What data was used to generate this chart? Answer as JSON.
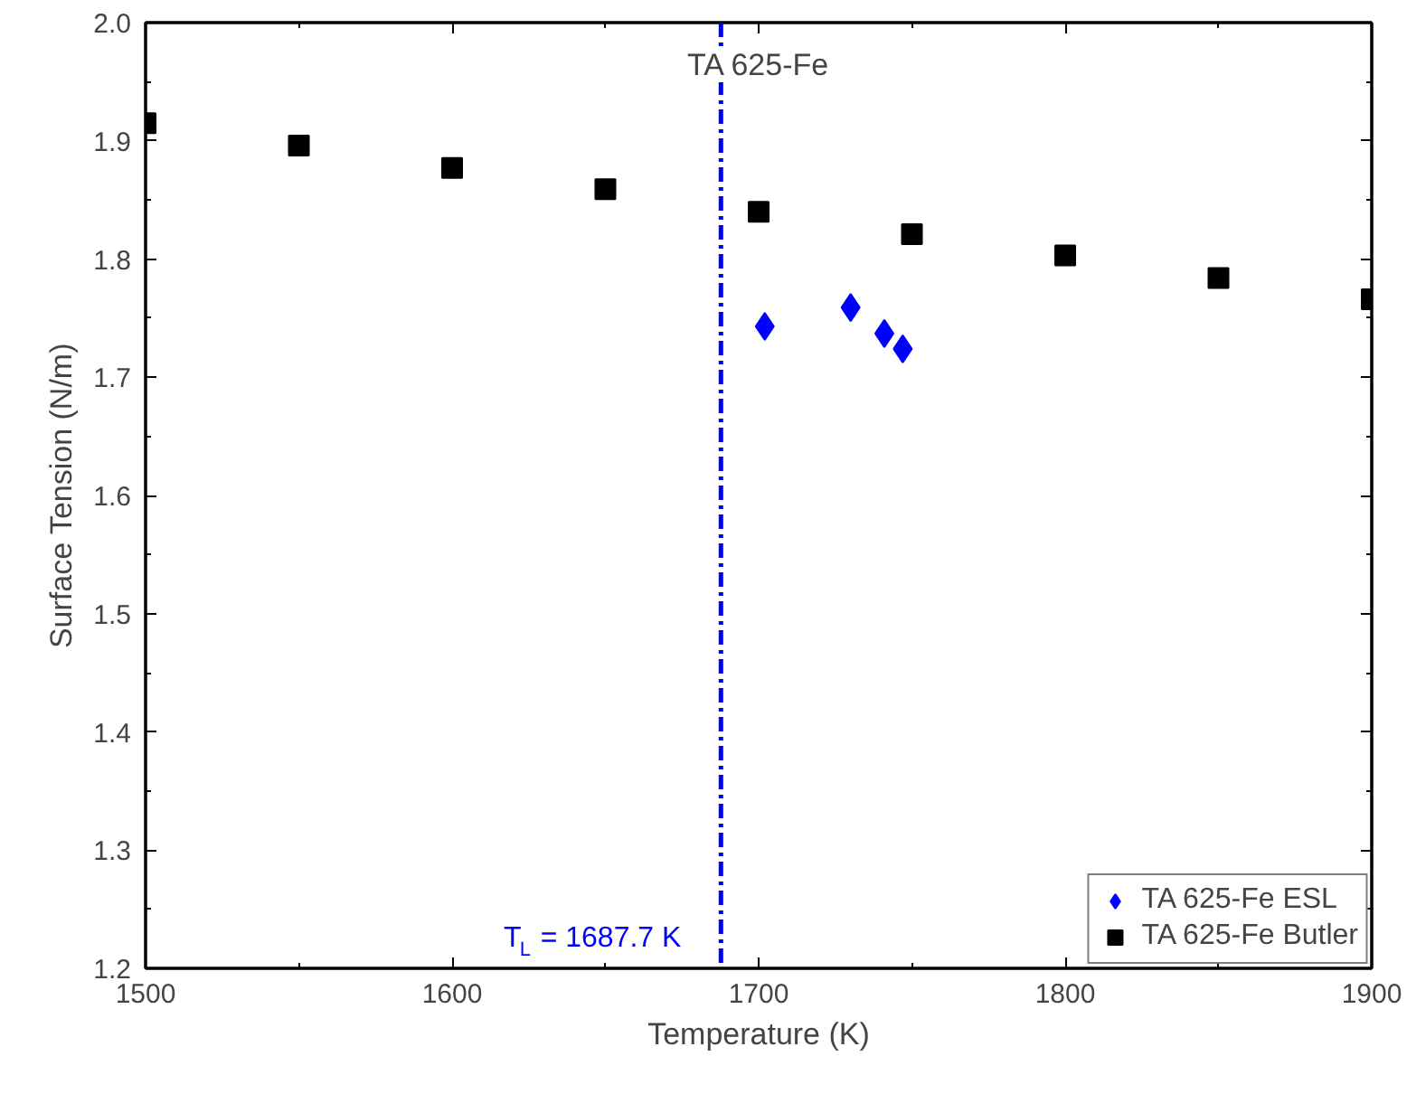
{
  "chart_data": {
    "type": "scatter",
    "title": "TA 625-Fe",
    "xlabel": "Temperature (K)",
    "ylabel": "Surface Tension (N/m)",
    "xlim": [
      1500,
      1900
    ],
    "xticks": [
      1500,
      1600,
      1700,
      1800,
      1900
    ],
    "ylim": [
      1.2,
      2.0
    ],
    "yticks": [
      1.2,
      1.3,
      1.4,
      1.5,
      1.6,
      1.7,
      1.8,
      1.9,
      {
        "value": 2.0,
        "label": "2.0"
      }
    ],
    "grid": false,
    "legend": "bottom right",
    "series": [
      {
        "name": "TA 625-Fe ESL",
        "color": "#0000ff",
        "marker": "diamond",
        "x": [
          1702,
          1730,
          1741,
          1747
        ],
        "values": [
          1.743,
          1.759,
          1.737,
          1.724
        ]
      },
      {
        "name": "TA 625-Fe Butler",
        "color": "#000000",
        "marker": "square",
        "x": [
          1500,
          1550,
          1600,
          1650,
          1700,
          1750,
          1800,
          1850,
          1900
        ],
        "values": [
          1.915,
          1.896,
          1.877,
          1.859,
          1.84,
          1.821,
          1.803,
          1.784,
          1.766
        ]
      }
    ],
    "ref_lines": [
      {
        "axis": "x",
        "value": 1687.7,
        "label": "T$_{L}$ = 1687.7 K",
        "color": "#0000ff",
        "line_style": "dashdot"
      }
    ]
  }
}
